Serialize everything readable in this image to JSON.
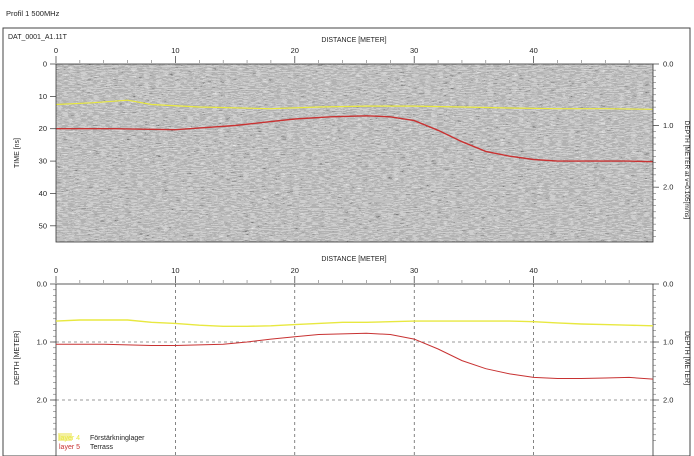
{
  "page": {
    "title": "Profil 1 500MHz",
    "filename": "DAT_0001_A1.11T"
  },
  "chart_data": [
    {
      "type": "heatmap",
      "title": "",
      "xlabel": "DISTANCE [METER]",
      "ylabel": "TIME [ns]",
      "y2label": "DEPTH [METER at v=0.105[m/ns]",
      "xlim": [
        0,
        50
      ],
      "ylim": [
        55,
        0
      ],
      "y2lim": [
        0,
        2.89
      ],
      "x_ticks": [
        0,
        10,
        20,
        30,
        40
      ],
      "y_ticks": [
        0,
        10,
        20,
        30,
        40,
        50
      ],
      "y2_ticks": [
        "0.0",
        "1.0",
        "2.0"
      ],
      "grid": false,
      "overlays": [
        {
          "name": "layer 4",
          "color": "#e8e840",
          "x": [
            0,
            3,
            6,
            8,
            12,
            18,
            22,
            26,
            30,
            34,
            38,
            42,
            46,
            50
          ],
          "y": [
            12.5,
            12.0,
            11.2,
            12.5,
            13.3,
            13.8,
            13.3,
            13.0,
            13.0,
            13.3,
            13.6,
            13.8,
            13.8,
            14.0
          ]
        },
        {
          "name": "layer 5",
          "color": "#c83232",
          "x": [
            0,
            5,
            10,
            15,
            18,
            20,
            23,
            26,
            28,
            30,
            32,
            34,
            36,
            38,
            40,
            42,
            44,
            46,
            48,
            50
          ],
          "y": [
            20.0,
            20.0,
            20.3,
            19.0,
            17.8,
            17.0,
            16.3,
            16.0,
            16.3,
            17.5,
            20.5,
            24.0,
            27.0,
            28.5,
            29.5,
            30.0,
            30.0,
            30.0,
            30.0,
            30.2
          ]
        }
      ]
    },
    {
      "type": "line",
      "title": "",
      "xlabel": "DISTANCE [METER]",
      "ylabel": "DEPTH [METER]",
      "y2label": "DEPTH [METER]",
      "xlim": [
        0,
        50
      ],
      "ylim": [
        2.73,
        0
      ],
      "x_ticks": [
        0,
        10,
        20,
        30,
        40
      ],
      "y_ticks": [
        "0.0",
        "1.0",
        "2.0"
      ],
      "grid": true,
      "legend": "bottom-left",
      "series": [
        {
          "name": "layer 4",
          "label": "Förstärkninglager",
          "color": "#e8e840",
          "x": [
            0,
            2,
            4,
            6,
            8,
            10,
            12,
            14,
            16,
            18,
            20,
            22,
            24,
            26,
            28,
            30,
            32,
            34,
            36,
            38,
            40,
            42,
            44,
            46,
            48,
            50
          ],
          "y": [
            0.64,
            0.62,
            0.62,
            0.62,
            0.66,
            0.68,
            0.71,
            0.73,
            0.73,
            0.72,
            0.7,
            0.68,
            0.66,
            0.66,
            0.65,
            0.64,
            0.64,
            0.64,
            0.64,
            0.64,
            0.65,
            0.67,
            0.69,
            0.7,
            0.71,
            0.72
          ]
        },
        {
          "name": "layer 5",
          "label": "Terrass",
          "color": "#c83232",
          "x": [
            0,
            2,
            4,
            6,
            8,
            10,
            12,
            14,
            16,
            18,
            20,
            22,
            24,
            26,
            28,
            30,
            32,
            34,
            36,
            38,
            40,
            42,
            44,
            46,
            48,
            50
          ],
          "y": [
            1.04,
            1.04,
            1.04,
            1.05,
            1.06,
            1.06,
            1.05,
            1.04,
            1.0,
            0.95,
            0.91,
            0.87,
            0.86,
            0.85,
            0.87,
            0.95,
            1.12,
            1.32,
            1.46,
            1.55,
            1.61,
            1.63,
            1.63,
            1.62,
            1.61,
            1.64
          ]
        }
      ]
    }
  ]
}
